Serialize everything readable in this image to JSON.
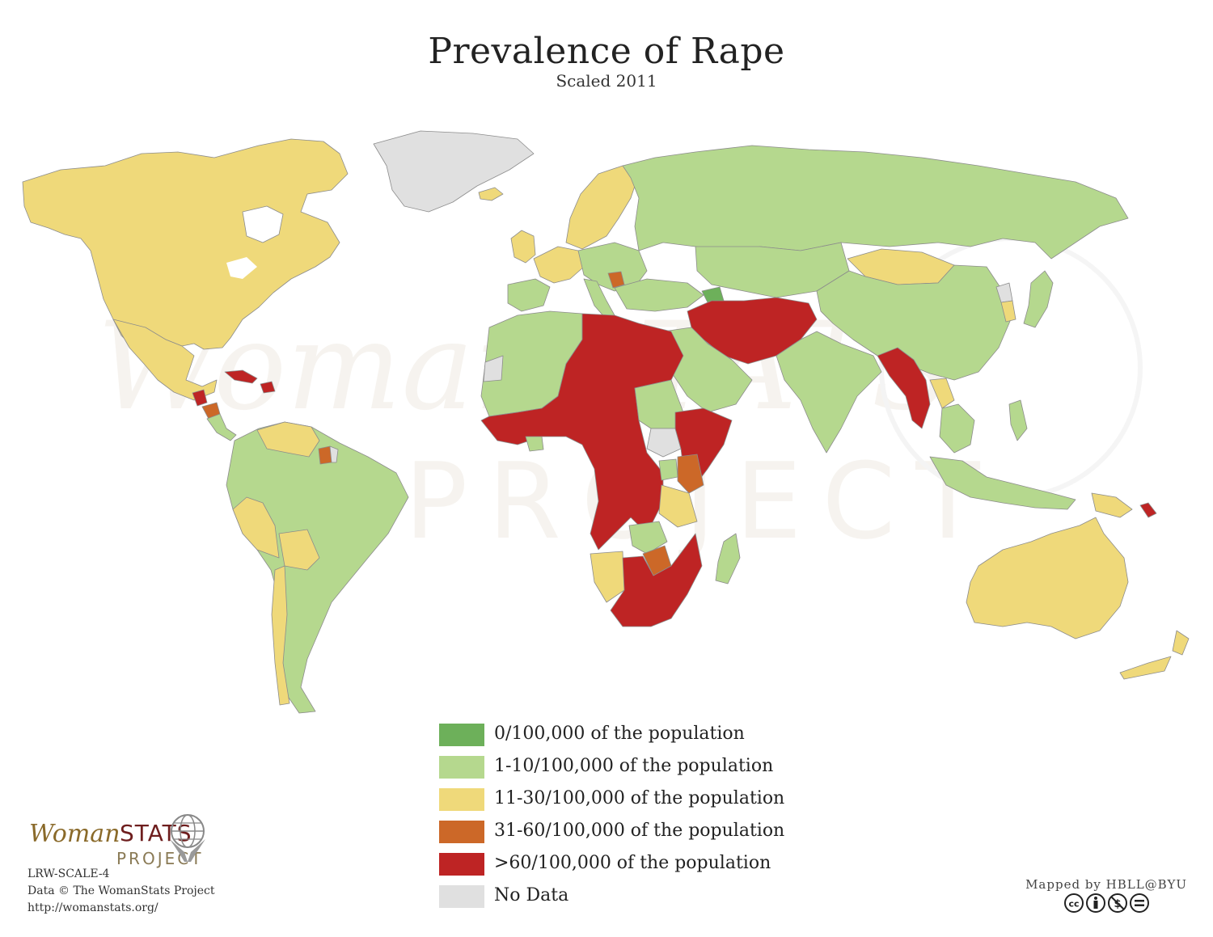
{
  "map": {
    "title": "Prevalence of Rape",
    "subtitle": "Scaled 2011",
    "watermark": "WomanSTATS PROJECT",
    "colors": {
      "zero": "#6db05a",
      "low": "#b5d88e",
      "mid": "#efd97a",
      "high": "#cc6828",
      "very_high": "#be2424",
      "no_data": "#e0e0e0",
      "border": "#8c8c8c",
      "ocean": "#ffffff"
    }
  },
  "legend": [
    {
      "label": "0/100,000 of the population",
      "color": "#6db05a"
    },
    {
      "label": "1-10/100,000 of the population",
      "color": "#b5d88e"
    },
    {
      "label": "11-30/100,000 of the population",
      "color": "#efd97a"
    },
    {
      "label": "31-60/100,000 of the population",
      "color": "#cc6828"
    },
    {
      "label": ">60/100,000 of the population",
      "color": "#be2424"
    },
    {
      "label": "No Data",
      "color": "#e0e0e0"
    }
  ],
  "logo": {
    "woman": "Woman",
    "stats": "STATS",
    "project": "PROJECT"
  },
  "credits": {
    "code": "LRW-SCALE-4",
    "data": "Data © The WomanStats Project",
    "url": "http://womanstats.org/",
    "mapped_by": "Mapped by HBLL@BYU"
  },
  "license_icons": [
    "cc-icon",
    "by-icon",
    "nc-icon",
    "nd-icon"
  ]
}
